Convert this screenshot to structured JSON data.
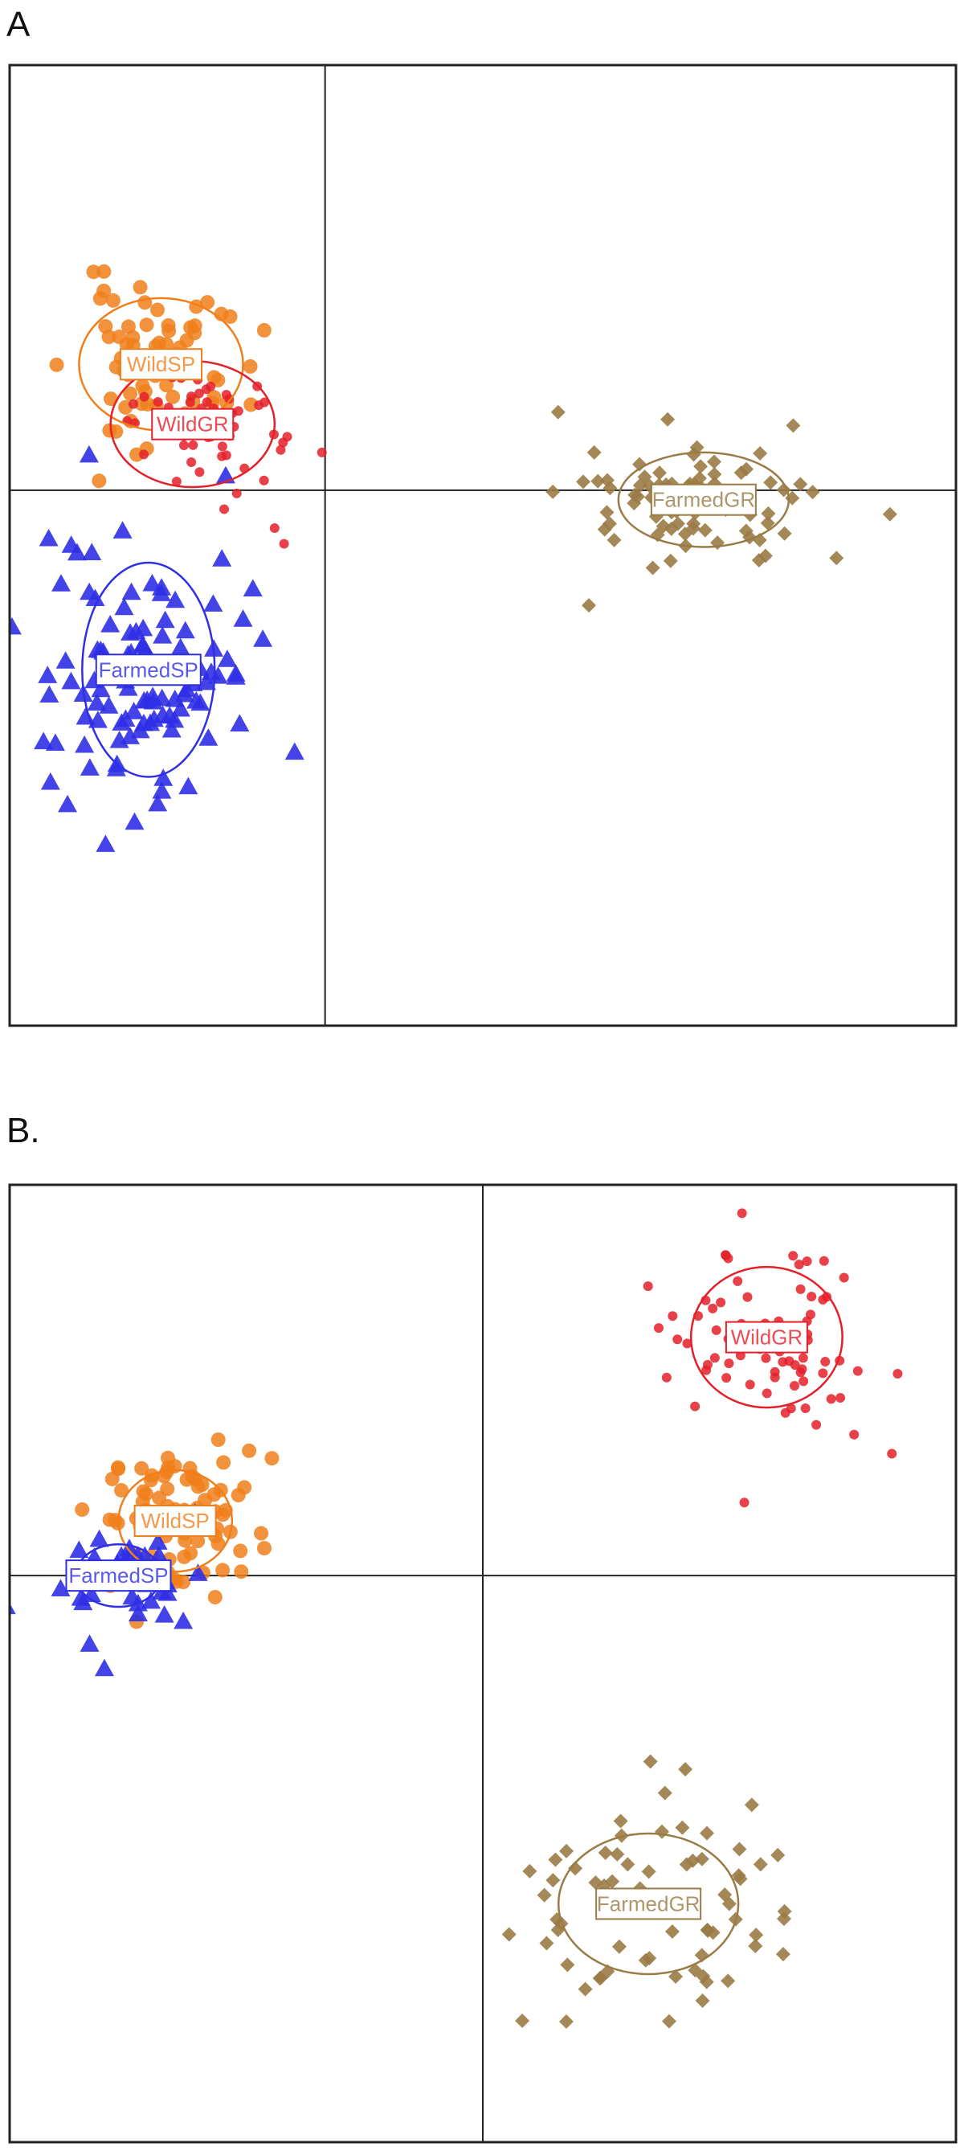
{
  "figure": {
    "panels": [
      {
        "letter": "A"
      },
      {
        "letter": "B."
      }
    ]
  },
  "colors": {
    "WildSP": "#f07f1b",
    "WildGR": "#e4202a",
    "FarmedSP": "#2f2fe6",
    "FarmedGR": "#9b7b45"
  },
  "chart_data": [
    {
      "type": "scatter",
      "panel": "A",
      "xlim": [
        -1.0,
        2.0
      ],
      "ylim": [
        -1.7,
        1.35
      ],
      "grid": false,
      "axes_lines": "origin cross",
      "groups": [
        {
          "name": "WildSP",
          "marker": "circle",
          "color": "#f07f1b",
          "center": [
            -0.52,
            0.4
          ],
          "ellipse_radius": [
            0.26,
            0.21
          ],
          "spread": [
            0.14,
            0.13
          ],
          "count": 70,
          "seed": 11
        },
        {
          "name": "WildGR",
          "marker": "circle-small",
          "color": "#e4202a",
          "center": [
            -0.42,
            0.21
          ],
          "ellipse_radius": [
            0.26,
            0.2
          ],
          "spread": [
            0.13,
            0.1
          ],
          "count": 55,
          "seed": 23
        },
        {
          "name": "FarmedSP",
          "marker": "triangle",
          "color": "#2f2fe6",
          "center": [
            -0.56,
            -0.57
          ],
          "ellipse_radius": [
            0.21,
            0.34
          ],
          "spread": [
            0.16,
            0.22
          ],
          "count": 110,
          "seed": 37
        },
        {
          "name": "FarmedGR",
          "marker": "diamond",
          "color": "#9b7b45",
          "center": [
            1.2,
            -0.03
          ],
          "ellipse_radius": [
            0.27,
            0.15
          ],
          "spread": [
            0.18,
            0.1
          ],
          "count": 85,
          "seed": 41
        }
      ],
      "outliers": [
        {
          "group": "WildGR",
          "points": [
            [
              -0.01,
              0.12
            ],
            [
              -0.12,
              0.17
            ],
            [
              -0.21,
              0.27
            ],
            [
              -0.32,
              -0.06
            ],
            [
              -0.13,
              -0.17
            ],
            [
              -0.16,
              -0.12
            ],
            [
              -0.28,
              -0.01
            ]
          ]
        }
      ]
    },
    {
      "type": "scatter",
      "panel": "B",
      "xlim": [
        -1.0,
        1.0
      ],
      "ylim": [
        -1.45,
        1.0
      ],
      "grid": false,
      "axes_lines": "origin cross",
      "groups": [
        {
          "name": "WildSP",
          "marker": "circle",
          "color": "#f07f1b",
          "center": [
            -0.65,
            0.14
          ],
          "ellipse_radius": [
            0.12,
            0.13
          ],
          "spread": [
            0.09,
            0.09
          ],
          "count": 85,
          "seed": 53
        },
        {
          "name": "FarmedSP",
          "marker": "triangle",
          "color": "#2f2fe6",
          "center": [
            -0.77,
            0.0
          ],
          "ellipse_radius": [
            0.09,
            0.08
          ],
          "spread": [
            0.09,
            0.07
          ],
          "count": 45,
          "seed": 61
        },
        {
          "name": "WildGR",
          "marker": "circle-small",
          "color": "#e4202a",
          "center": [
            0.6,
            0.61
          ],
          "ellipse_radius": [
            0.16,
            0.18
          ],
          "spread": [
            0.12,
            0.14
          ],
          "count": 75,
          "seed": 71
        },
        {
          "name": "FarmedGR",
          "marker": "diamond",
          "color": "#9b7b45",
          "center": [
            0.35,
            -0.84
          ],
          "ellipse_radius": [
            0.19,
            0.18
          ],
          "spread": [
            0.14,
            0.16
          ],
          "count": 70,
          "seed": 83
        }
      ],
      "outliers": []
    }
  ]
}
